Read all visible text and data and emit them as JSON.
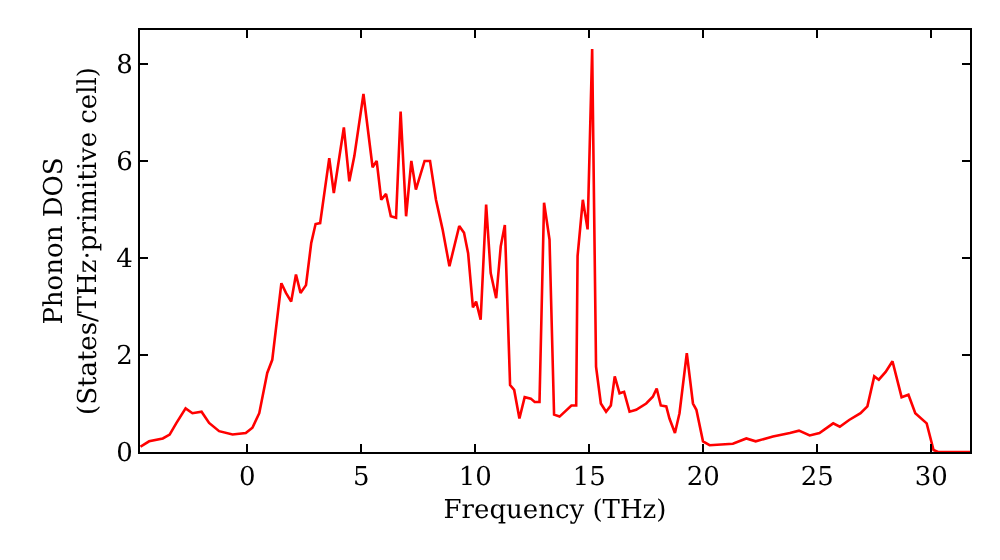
{
  "chart_data": {
    "type": "line",
    "xlabel": "Frequency (THz)",
    "ylabel": "Phonon DOS\n(States/THz·primitive cell)",
    "xlim": [
      -4.7,
      31.7
    ],
    "ylim": [
      0,
      8.7
    ],
    "xticks": [
      0,
      5,
      10,
      15,
      20,
      25,
      30
    ],
    "yticks": [
      0,
      2,
      4,
      6,
      8
    ],
    "grid": false,
    "marker": "none",
    "line_style": "solid",
    "series": [
      {
        "color": "#ff0000",
        "x": [
          -4.68,
          -4.3,
          -3.7,
          -3.4,
          -3.1,
          -2.7,
          -2.4,
          -2.0,
          -1.67,
          -1.23,
          -0.64,
          -0.06,
          0.23,
          0.53,
          0.88,
          1.1,
          1.5,
          1.7,
          1.93,
          2.14,
          2.34,
          2.58,
          2.81,
          3.0,
          3.2,
          3.6,
          3.8,
          4.24,
          4.48,
          4.7,
          5.1,
          5.5,
          5.68,
          5.88,
          6.09,
          6.3,
          6.53,
          6.73,
          6.97,
          7.2,
          7.4,
          7.78,
          8.02,
          8.28,
          8.57,
          8.87,
          9.3,
          9.51,
          9.69,
          9.9,
          10.04,
          10.24,
          10.48,
          10.68,
          10.92,
          11.12,
          11.3,
          11.53,
          11.71,
          11.94,
          12.17,
          12.44,
          12.61,
          12.82,
          13.02,
          13.26,
          13.46,
          13.7,
          14.22,
          14.43,
          14.49,
          14.72,
          14.93,
          15.13,
          15.3,
          15.51,
          15.74,
          15.95,
          16.12,
          16.33,
          16.53,
          16.77,
          17.06,
          17.5,
          17.79,
          17.96,
          18.14,
          18.38,
          18.52,
          18.76,
          18.96,
          19.28,
          19.55,
          19.7,
          19.99,
          20.28,
          21.3,
          21.89,
          22.3,
          23.06,
          23.8,
          24.2,
          24.67,
          25.1,
          25.7,
          25.99,
          26.4,
          26.9,
          27.2,
          27.5,
          27.7,
          28.0,
          28.3,
          28.7,
          29.0,
          29.3,
          29.8,
          30.1,
          30.3,
          31.7
        ],
        "values": [
          0.11,
          0.22,
          0.28,
          0.36,
          0.6,
          0.9,
          0.8,
          0.83,
          0.6,
          0.43,
          0.36,
          0.39,
          0.5,
          0.8,
          1.63,
          1.9,
          3.48,
          3.28,
          3.1,
          3.66,
          3.28,
          3.44,
          4.31,
          4.7,
          4.72,
          6.06,
          5.34,
          6.69,
          5.58,
          6.1,
          7.38,
          5.87,
          6.0,
          5.2,
          5.32,
          4.86,
          4.83,
          7.02,
          4.86,
          6.0,
          5.41,
          6.0,
          6.0,
          5.2,
          4.59,
          3.83,
          4.66,
          4.52,
          4.1,
          2.98,
          3.1,
          2.73,
          5.1,
          3.69,
          3.17,
          4.24,
          4.68,
          1.38,
          1.28,
          0.69,
          1.13,
          1.1,
          1.03,
          1.03,
          5.14,
          4.38,
          0.77,
          0.73,
          0.96,
          0.96,
          4.04,
          5.2,
          4.59,
          8.31,
          1.76,
          1.0,
          0.83,
          0.96,
          1.56,
          1.21,
          1.24,
          0.83,
          0.87,
          1.0,
          1.14,
          1.31,
          0.96,
          0.94,
          0.69,
          0.39,
          0.8,
          2.04,
          1.0,
          0.87,
          0.22,
          0.14,
          0.17,
          0.28,
          0.22,
          0.32,
          0.39,
          0.44,
          0.34,
          0.39,
          0.59,
          0.52,
          0.66,
          0.8,
          0.94,
          1.56,
          1.49,
          1.65,
          1.87,
          1.13,
          1.18,
          0.8,
          0.59,
          0.04,
          0,
          0
        ]
      }
    ]
  }
}
